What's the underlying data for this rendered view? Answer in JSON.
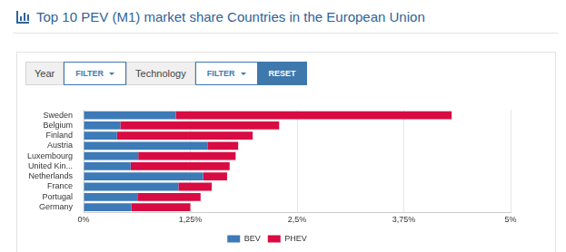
{
  "controls": [
    {
      "label": "Year",
      "button": "FILTER"
    },
    {
      "label": "Technology",
      "button": "FILTER"
    }
  ],
  "reset": "RESET",
  "chart_data": {
    "type": "bar",
    "title": "Top 10 PEV (M1) market share Countries in the European Union",
    "orientation": "horizontal",
    "stacked": true,
    "categories": [
      "Sweden",
      "Belgium",
      "Finland",
      "Austria",
      "Luxembourg",
      "United Kin...",
      "Netherlands",
      "France",
      "Portugal",
      "Germany"
    ],
    "series": [
      {
        "name": "BEV",
        "color": "#3d7ab8",
        "values": [
          1.08,
          0.43,
          0.39,
          1.45,
          0.64,
          0.55,
          1.4,
          1.11,
          0.63,
          0.56
        ]
      },
      {
        "name": "PHEV",
        "color": "#d80b43",
        "values": [
          3.23,
          1.86,
          1.59,
          0.36,
          1.14,
          1.16,
          0.28,
          0.39,
          0.74,
          0.69
        ]
      }
    ],
    "xlim": [
      0,
      5
    ],
    "xticks": [
      {
        "value": 0,
        "label": "0%"
      },
      {
        "value": 1.25,
        "label": "1,25%"
      },
      {
        "value": 2.5,
        "label": "2,5%"
      },
      {
        "value": 3.75,
        "label": "3,75%"
      },
      {
        "value": 5,
        "label": "5%"
      }
    ],
    "grid": true,
    "legend": "bottom"
  }
}
